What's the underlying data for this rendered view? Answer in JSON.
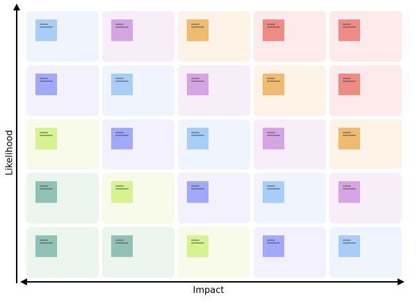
{
  "axes": {
    "x_label": "Impact",
    "y_label": "Likelihood"
  },
  "colors": {
    "cell_backgrounds": {
      "blue": "#eff4fd",
      "purple": "#f2f1fd",
      "pink": "#f7eefa",
      "orange": "#fdf3e6",
      "red": "#fdeaea",
      "yellow": "#f8fbea",
      "green": "#ecf5ee"
    },
    "notes": {
      "blue": "#a8cdf7",
      "purple": "#a3a9fa",
      "pink": "#d5a4e3",
      "orange": "#eebb71",
      "red": "#ef8b85",
      "yellow": "#d7f38f",
      "green": "#8fc2b5"
    }
  },
  "grid": [
    [
      "blue",
      "pink",
      "orange",
      "red",
      "red"
    ],
    [
      "purple",
      "blue",
      "pink",
      "orange",
      "red"
    ],
    [
      "yellow",
      "purple",
      "blue",
      "pink",
      "orange"
    ],
    [
      "green",
      "yellow",
      "purple",
      "blue",
      "pink"
    ],
    [
      "green",
      "green",
      "yellow",
      "purple",
      "blue"
    ]
  ]
}
